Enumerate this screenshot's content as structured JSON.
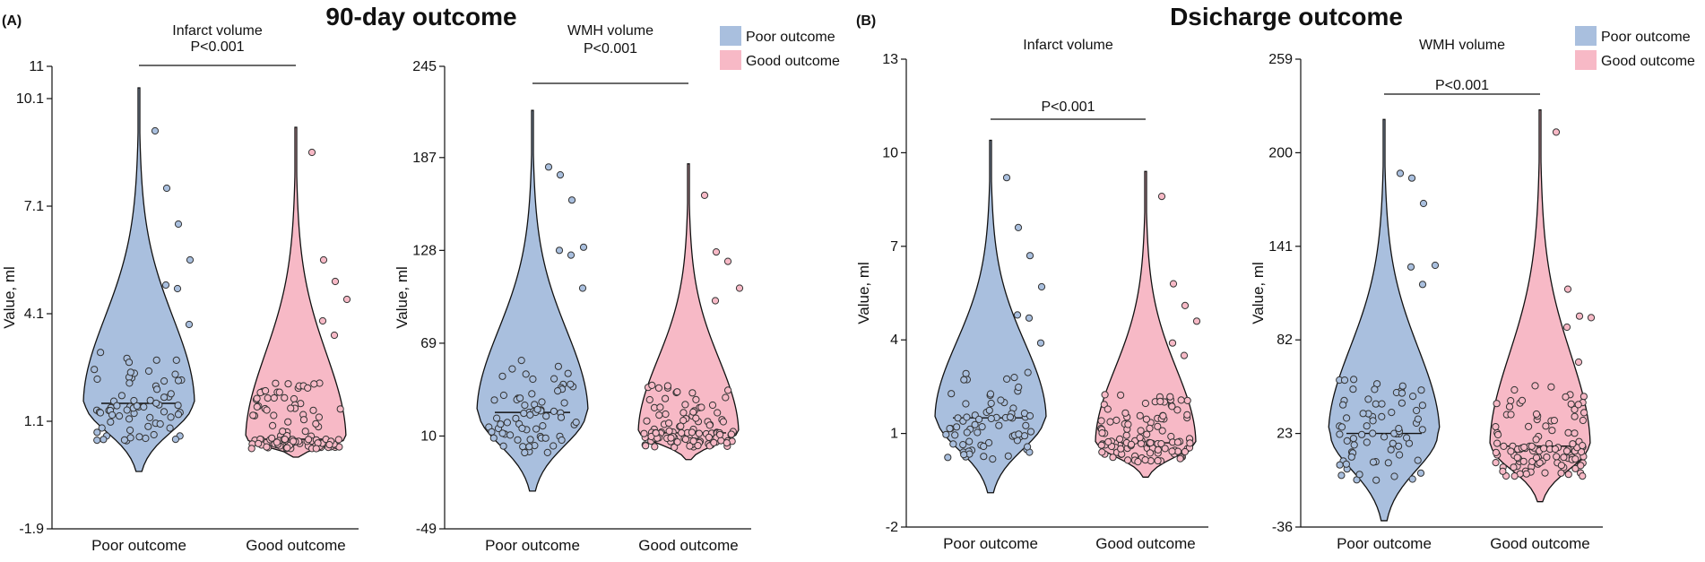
{
  "figure": {
    "sections": [
      {
        "label": "(A)",
        "title": "90-day outcome"
      },
      {
        "label": "(B)",
        "title": "Dsicharge outcome"
      }
    ],
    "legend": [
      {
        "label": "Poor outcome",
        "color": "#a9bfde"
      },
      {
        "label": "Good outcome",
        "color": "#f7b9c6"
      }
    ]
  },
  "chart_data": [
    {
      "type": "violin",
      "section": "(A) 90-day outcome",
      "title": [
        "Infarct volume",
        "P<0.001"
      ],
      "ylabel": "Value, ml",
      "yticks": [
        -1.9,
        1.1,
        4.1,
        7.1,
        10.1,
        11
      ],
      "ylim": [
        -1.9,
        11
      ],
      "categories": [
        "Poor outcome",
        "Good outcome"
      ],
      "medians": [
        1.6,
        0.6
      ],
      "ranges": [
        [
          -0.3,
          10.4
        ],
        [
          0.1,
          9.3
        ]
      ],
      "outliers": [
        [
          9.2,
          7.6,
          6.6,
          5.6,
          4.9,
          4.8,
          3.8
        ],
        [
          8.6,
          5.6,
          5.0,
          4.5,
          3.9,
          3.5
        ]
      ],
      "significance": "P<0.001"
    },
    {
      "type": "violin",
      "section": "(A) 90-day outcome",
      "title": [
        "WMH volume",
        "P<0.001"
      ],
      "ylabel": "Value, ml",
      "yticks": [
        -49,
        10,
        69,
        128,
        187,
        245
      ],
      "ylim": [
        -49,
        245
      ],
      "categories": [
        "Poor outcome",
        "Good outcome"
      ],
      "medians": [
        25,
        12
      ],
      "ranges": [
        [
          -25,
          217
        ],
        [
          -5,
          183
        ]
      ],
      "outliers": [
        [
          181,
          176,
          160,
          130,
          128,
          125,
          104
        ],
        [
          163,
          127,
          121,
          104,
          96
        ]
      ],
      "significance": "P<0.001"
    },
    {
      "type": "violin",
      "section": "(B) Dsicharge outcome",
      "title": [
        "Infarct volume",
        "P<0.001"
      ],
      "ylabel": "Value, ml",
      "yticks": [
        -2,
        1,
        4,
        7,
        10,
        13
      ],
      "ylim": [
        -2,
        13
      ],
      "categories": [
        "Poor outcome",
        "Good outcome"
      ],
      "medians": [
        1.5,
        0.7
      ],
      "ranges": [
        [
          -0.9,
          10.4
        ],
        [
          -0.4,
          9.4
        ]
      ],
      "outliers": [
        [
          9.2,
          7.6,
          6.7,
          5.7,
          4.8,
          4.7,
          3.9
        ],
        [
          8.6,
          5.8,
          5.1,
          4.6,
          3.9,
          3.5
        ]
      ],
      "significance": "P<0.001"
    },
    {
      "type": "violin",
      "section": "(B) Dsicharge outcome",
      "title": [
        "WMH volume",
        "P<0.001"
      ],
      "ylabel": "Value, ml",
      "yticks": [
        -36,
        23,
        82,
        141,
        200,
        259
      ],
      "ylim": [
        -36,
        259
      ],
      "categories": [
        "Poor outcome",
        "Good outcome"
      ],
      "medians": [
        23,
        15
      ],
      "ranges": [
        [
          -32,
          221
        ],
        [
          -20,
          227
        ]
      ],
      "outliers": [
        [
          187,
          184,
          168,
          129,
          128,
          117
        ],
        [
          213,
          114,
          97,
          96,
          90,
          68
        ]
      ],
      "significance": "P<0.001"
    }
  ]
}
